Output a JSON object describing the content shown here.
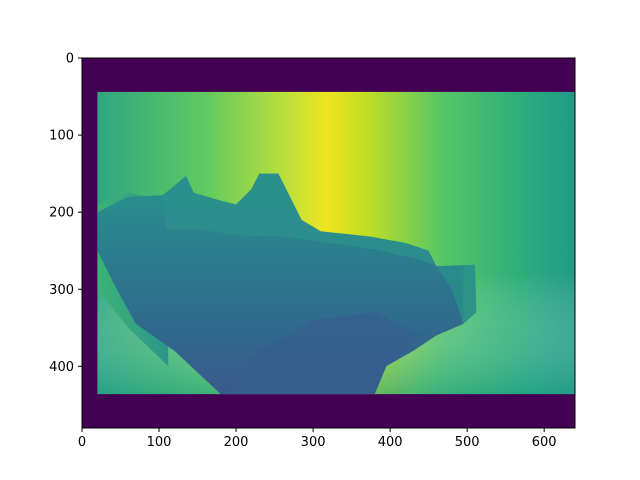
{
  "chart_data": {
    "type": "heatmap",
    "title": "",
    "xlabel": "",
    "ylabel": "",
    "colormap": "viridis",
    "image_extent": {
      "x": [
        0,
        640
      ],
      "y": [
        0,
        480
      ]
    },
    "xlim": [
      0,
      640
    ],
    "ylim": [
      480,
      0
    ],
    "y_axis_inverted": true,
    "valid_region": {
      "x": [
        20,
        640
      ],
      "y": [
        44,
        436
      ]
    },
    "invalid_fill_color": "#440154",
    "grid": false,
    "legend": "none",
    "xticks": [
      0,
      100,
      200,
      300,
      400,
      500,
      600
    ],
    "xtick_labels": [
      "0",
      "100",
      "200",
      "300",
      "400",
      "500",
      "600"
    ],
    "yticks": [
      0,
      100,
      200,
      300,
      400
    ],
    "ytick_labels": [
      "0",
      "100",
      "200",
      "300",
      "400"
    ],
    "region_colors": {
      "background_far": "#e4e41c",
      "background_mid": "#5ec962",
      "background_right": "#26a185",
      "object_top": "#2a8c8b",
      "object_body": "#2f6d8e",
      "floor_front": "#3b5a8c"
    }
  }
}
